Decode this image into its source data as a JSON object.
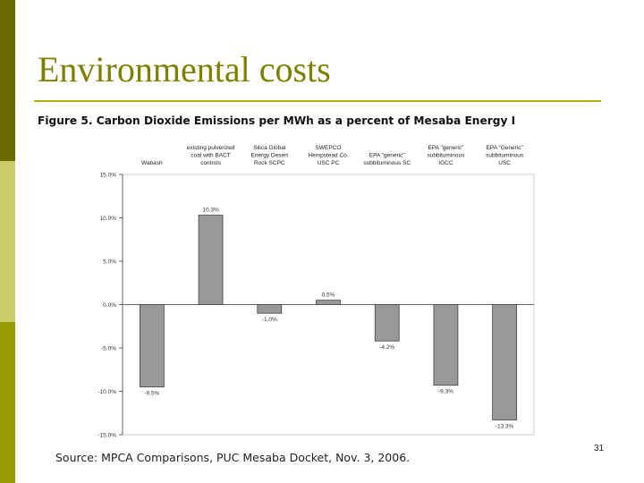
{
  "slide": {
    "title": "Environmental costs",
    "figure_caption": "Figure 5.  Carbon Dioxide Emissions per MWh as a percent of Mesaba Energy I",
    "source": "Source: MPCA Comparisons, PUC Mesaba Docket, Nov. 3, 2006.",
    "page_number": "31"
  },
  "colors": {
    "sidebar": [
      "#6b6b00",
      "#c9cc66",
      "#999900"
    ],
    "title": "#7f7f00",
    "rule": "#b3b300",
    "bar": "#999999"
  },
  "chart_data": {
    "type": "bar",
    "categories": [
      [
        "Wabash"
      ],
      [
        "existing pulverized",
        "coal with BACT",
        "controls"
      ],
      [
        "Silica Global",
        "Energy Desert",
        "Rock SCPC"
      ],
      [
        "SWEPCO",
        "Hempstead Co.",
        "USC PC"
      ],
      [
        "EPA \"generic\"",
        "subbituminous SC"
      ],
      [
        "EPA \"generic\"",
        "subbituminous",
        "IGCC"
      ],
      [
        "EPA \"Generic\"",
        "subbituminous",
        "USC"
      ]
    ],
    "values": [
      -9.5,
      10.3,
      -1.0,
      0.5,
      -4.2,
      -9.3,
      -13.3
    ],
    "value_labels": [
      "-9.5%",
      "10.3%",
      "-1.0%",
      "0.5%",
      "-4.2%",
      "-9.3%",
      "-13.3%"
    ],
    "yticks": [
      "15.0%",
      "10.0%",
      "5.0%",
      "0.0%",
      "-5.0%",
      "-10.0%",
      "-15.0%"
    ],
    "ylim": [
      -15,
      15
    ],
    "legend": "none",
    "grid": false
  }
}
